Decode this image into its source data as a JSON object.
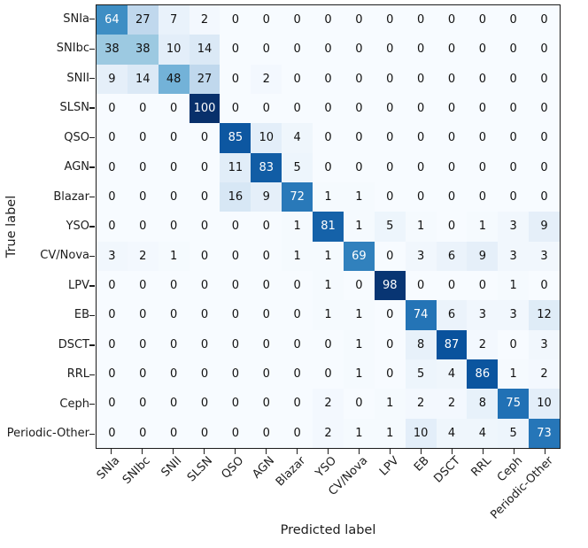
{
  "chart_data": {
    "type": "heatmap",
    "title": "",
    "xlabel": "Predicted label",
    "ylabel": "True label",
    "colormap": "Blues",
    "grid": false,
    "legend": "none",
    "value_range": [
      0,
      100
    ],
    "text_threshold": 50,
    "categories": [
      "SNIa",
      "SNIbc",
      "SNII",
      "SLSN",
      "QSO",
      "AGN",
      "Blazar",
      "YSO",
      "CV/Nova",
      "LPV",
      "EB",
      "DSCT",
      "RRL",
      "Ceph",
      "Periodic-Other"
    ],
    "rows": [
      [
        64,
        27,
        7,
        2,
        0,
        0,
        0,
        0,
        0,
        0,
        0,
        0,
        0,
        0,
        0
      ],
      [
        38,
        38,
        10,
        14,
        0,
        0,
        0,
        0,
        0,
        0,
        0,
        0,
        0,
        0,
        0
      ],
      [
        9,
        14,
        48,
        27,
        0,
        2,
        0,
        0,
        0,
        0,
        0,
        0,
        0,
        0,
        0
      ],
      [
        0,
        0,
        0,
        100,
        0,
        0,
        0,
        0,
        0,
        0,
        0,
        0,
        0,
        0,
        0
      ],
      [
        0,
        0,
        0,
        0,
        85,
        10,
        4,
        0,
        0,
        0,
        0,
        0,
        0,
        0,
        0
      ],
      [
        0,
        0,
        0,
        0,
        11,
        83,
        5,
        0,
        0,
        0,
        0,
        0,
        0,
        0,
        0
      ],
      [
        0,
        0,
        0,
        0,
        16,
        9,
        72,
        1,
        1,
        0,
        0,
        0,
        0,
        0,
        0
      ],
      [
        0,
        0,
        0,
        0,
        0,
        0,
        1,
        81,
        1,
        5,
        1,
        0,
        1,
        3,
        9
      ],
      [
        3,
        2,
        1,
        0,
        0,
        0,
        1,
        1,
        69,
        0,
        3,
        6,
        9,
        3,
        3
      ],
      [
        0,
        0,
        0,
        0,
        0,
        0,
        0,
        1,
        0,
        98,
        0,
        0,
        0,
        1,
        0
      ],
      [
        0,
        0,
        0,
        0,
        0,
        0,
        0,
        1,
        1,
        0,
        74,
        6,
        3,
        3,
        12
      ],
      [
        0,
        0,
        0,
        0,
        0,
        0,
        0,
        0,
        1,
        0,
        8,
        87,
        2,
        0,
        3
      ],
      [
        0,
        0,
        0,
        0,
        0,
        0,
        0,
        0,
        1,
        0,
        5,
        4,
        86,
        1,
        2
      ],
      [
        0,
        0,
        0,
        0,
        0,
        0,
        0,
        2,
        0,
        1,
        2,
        2,
        8,
        75,
        10
      ],
      [
        0,
        0,
        0,
        0,
        0,
        0,
        0,
        2,
        1,
        1,
        10,
        4,
        4,
        5,
        73
      ]
    ]
  },
  "colors": {
    "figure_background": "#ffffff",
    "axis_border": "#1c1c1c",
    "tick_color": "#1c1c1c",
    "cell_text_dark": "#111111",
    "cell_text_light": "#ffffff",
    "colormap_anchors": [
      "#f7fbff",
      "#deebf7",
      "#c6dbef",
      "#9ecae1",
      "#6baed6",
      "#4292c6",
      "#2171b5",
      "#08519c",
      "#08306b"
    ]
  }
}
